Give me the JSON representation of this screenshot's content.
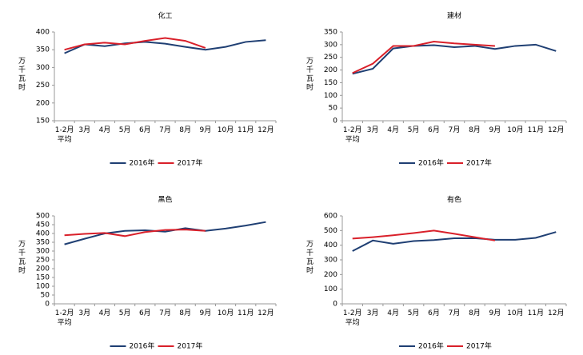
{
  "chart_data": [
    {
      "type": "line",
      "title": "化工",
      "y_label": "万千瓦时",
      "categories": [
        "1-2月\n平均",
        "3月",
        "4月",
        "5月",
        "6月",
        "7月",
        "8月",
        "9月",
        "10月",
        "11月",
        "12月"
      ],
      "ylim": [
        150,
        400
      ],
      "yticks": [
        150,
        200,
        250,
        300,
        350,
        400
      ],
      "series": [
        {
          "name": "2016年",
          "color": "#1f3f73",
          "values": [
            340,
            365,
            360,
            368,
            372,
            367,
            358,
            350,
            358,
            372,
            377
          ]
        },
        {
          "name": "2017年",
          "color": "#d9202a",
          "values": [
            350,
            365,
            370,
            365,
            375,
            383,
            375,
            355,
            null,
            null,
            null
          ]
        }
      ]
    },
    {
      "type": "line",
      "title": "建材",
      "y_label": "万千瓦时",
      "categories": [
        "1-2月\n平均",
        "3月",
        "4月",
        "5月",
        "6月",
        "7月",
        "8月",
        "9月",
        "10月",
        "11月",
        "12月"
      ],
      "ylim": [
        0,
        350
      ],
      "yticks": [
        0,
        50,
        100,
        150,
        200,
        250,
        300,
        350
      ],
      "series": [
        {
          "name": "2016年",
          "color": "#1f3f73",
          "values": [
            185,
            205,
            285,
            295,
            298,
            290,
            295,
            283,
            295,
            300,
            275
          ]
        },
        {
          "name": "2017年",
          "color": "#d9202a",
          "values": [
            188,
            225,
            295,
            295,
            312,
            305,
            300,
            295,
            null,
            null,
            null
          ]
        }
      ]
    },
    {
      "type": "line",
      "title": "黑色",
      "y_label": "万千瓦时",
      "categories": [
        "1-2月\n平均",
        "3月",
        "4月",
        "5月",
        "6月",
        "7月",
        "8月",
        "9月",
        "10月",
        "11月",
        "12月"
      ],
      "ylim": [
        0,
        500
      ],
      "yticks": [
        0,
        50,
        100,
        150,
        200,
        250,
        300,
        350,
        400,
        450,
        500
      ],
      "series": [
        {
          "name": "2016年",
          "color": "#1f3f73",
          "values": [
            338,
            370,
            400,
            415,
            418,
            410,
            430,
            415,
            428,
            445,
            465
          ]
        },
        {
          "name": "2017年",
          "color": "#d9202a",
          "values": [
            390,
            398,
            403,
            385,
            408,
            420,
            422,
            415,
            null,
            null,
            null
          ]
        }
      ]
    },
    {
      "type": "line",
      "title": "有色",
      "y_label": "万千瓦时",
      "categories": [
        "1-2月\n平均",
        "3月",
        "4月",
        "5月",
        "6月",
        "7月",
        "8月",
        "9月",
        "10月",
        "11月",
        "12月"
      ],
      "ylim": [
        0,
        600
      ],
      "yticks": [
        0,
        100,
        200,
        300,
        400,
        500,
        600
      ],
      "series": [
        {
          "name": "2016年",
          "color": "#1f3f73",
          "values": [
            360,
            432,
            410,
            428,
            435,
            447,
            448,
            437,
            437,
            450,
            490
          ]
        },
        {
          "name": "2017年",
          "color": "#d9202a",
          "values": [
            445,
            455,
            468,
            483,
            500,
            478,
            455,
            432,
            null,
            null,
            null
          ]
        }
      ]
    }
  ]
}
